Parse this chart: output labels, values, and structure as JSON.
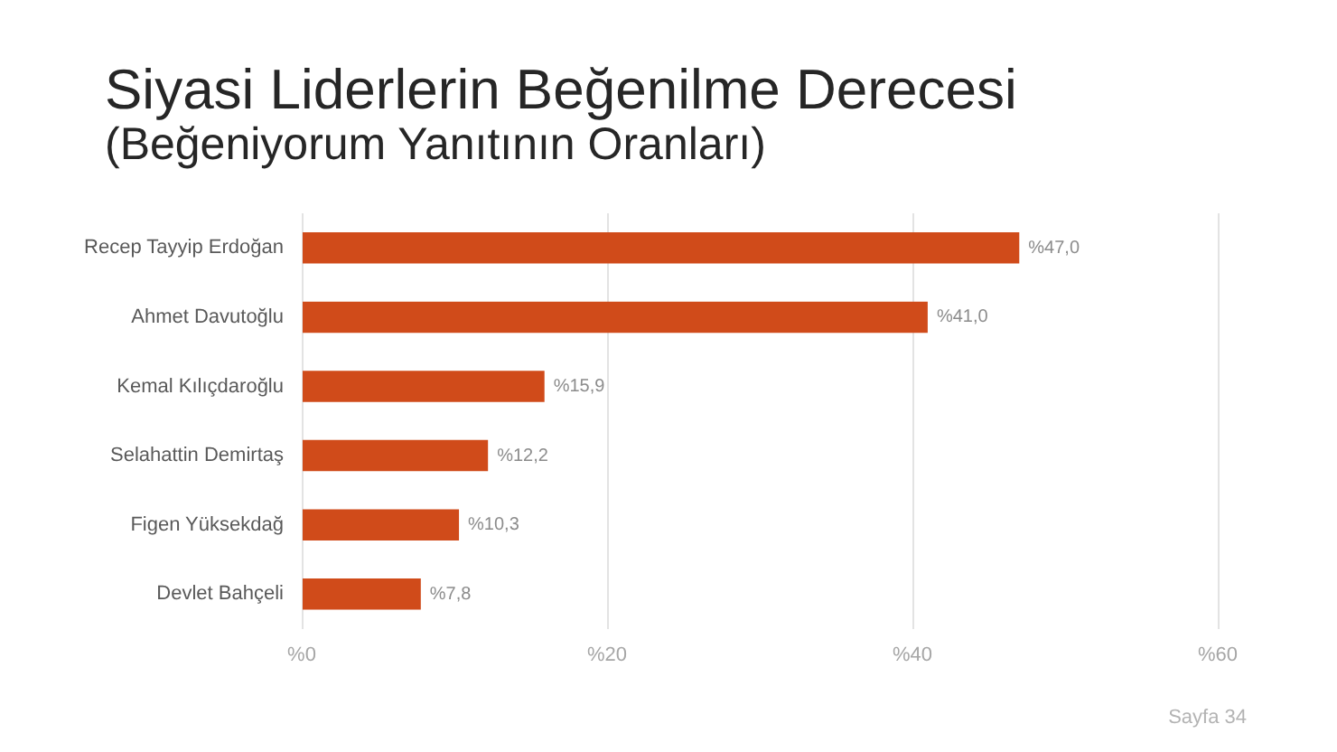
{
  "chart_data": {
    "type": "bar",
    "orientation": "horizontal",
    "title": "Siyasi Liderlerin Beğenilme Derecesi",
    "subtitle": "(Beğeniyorum Yanıtının Oranları)",
    "categories": [
      "Recep Tayyip Erdoğan",
      "Ahmet Davutoğlu",
      "Kemal Kılıçdaroğlu",
      "Selahattin Demirtaş",
      "Figen Yüksekdağ",
      "Devlet Bahçeli"
    ],
    "values": [
      47.0,
      41.0,
      15.9,
      12.2,
      10.3,
      7.8
    ],
    "color": "#d04b1a",
    "value_labels": [
      "%47,0",
      "%41,0",
      "%15,9",
      "%12,2",
      "%10,3",
      "%7,8"
    ],
    "xlim": [
      0,
      60
    ],
    "xticks": [
      {
        "value": 0,
        "label": "%0"
      },
      {
        "value": 20,
        "label": "%20"
      },
      {
        "value": 40,
        "label": "%40"
      },
      {
        "value": 60,
        "label": "%60"
      }
    ],
    "grid": "x",
    "annotations": [
      "Sayfa 34"
    ]
  }
}
